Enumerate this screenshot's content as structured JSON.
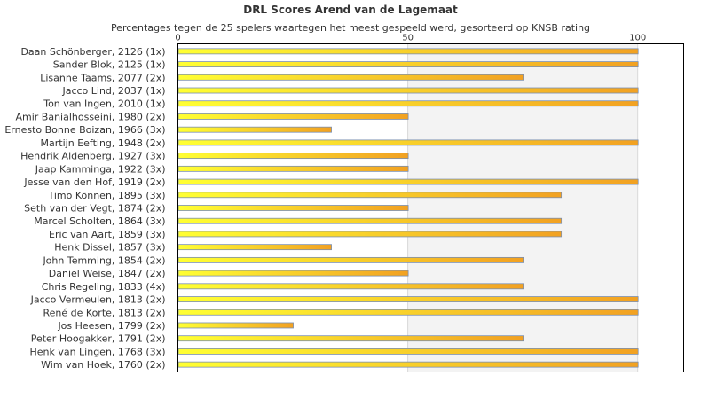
{
  "colors": {
    "bar_start": "#ffff33",
    "bar_end": "#f2a122",
    "bar_edge": "#7a8fb0",
    "band": "#f3f3f3",
    "plot_bg": "#ffffff",
    "grid": "#d9d9d9"
  },
  "chart_data": {
    "type": "bar",
    "orientation": "horizontal",
    "title": "DRL Scores Arend van de Lagemaat",
    "subtitle": "Percentages tegen de 25 spelers waartegen het meest gespeeld werd, gesorteerd op KNSB rating",
    "xlim": [
      0,
      110
    ],
    "xticks": [
      0,
      50,
      100
    ],
    "grid": true,
    "categories": [
      "Daan Schönberger, 2126 (1x)",
      "Sander Blok, 2125 (1x)",
      "Lisanne Taams, 2077 (2x)",
      "Jacco Lind, 2037 (1x)",
      "Ton van Ingen, 2010 (1x)",
      "Amir Banialhosseini, 1980 (2x)",
      "Ernesto Bonne Boizan, 1966 (3x)",
      "Martijn Eefting, 1948 (2x)",
      "Hendrik Aldenberg, 1927 (3x)",
      "Jaap Kamminga, 1922 (3x)",
      "Jesse van den Hof, 1919 (2x)",
      "Timo Können, 1895 (3x)",
      "Seth van der Vegt, 1874 (2x)",
      "Marcel Scholten, 1864 (3x)",
      "Eric van Aart, 1859 (3x)",
      "Henk Dissel, 1857 (3x)",
      "John Temming, 1854 (2x)",
      "Daniel Weise, 1847 (2x)",
      "Chris Regeling, 1833 (4x)",
      "Jacco Vermeulen, 1813 (2x)",
      "René de Korte, 1813 (2x)",
      "Jos Heesen, 1799 (2x)",
      "Peter Hoogakker, 1791 (2x)",
      "Henk van Lingen, 1768 (3x)",
      "Wim van Hoek, 1760 (2x)"
    ],
    "values": [
      100,
      100,
      75,
      100,
      100,
      50,
      33.3,
      100,
      50,
      50,
      100,
      83.3,
      50,
      83.3,
      83.3,
      33.3,
      75,
      50,
      75,
      100,
      100,
      25,
      75,
      100,
      100
    ]
  }
}
